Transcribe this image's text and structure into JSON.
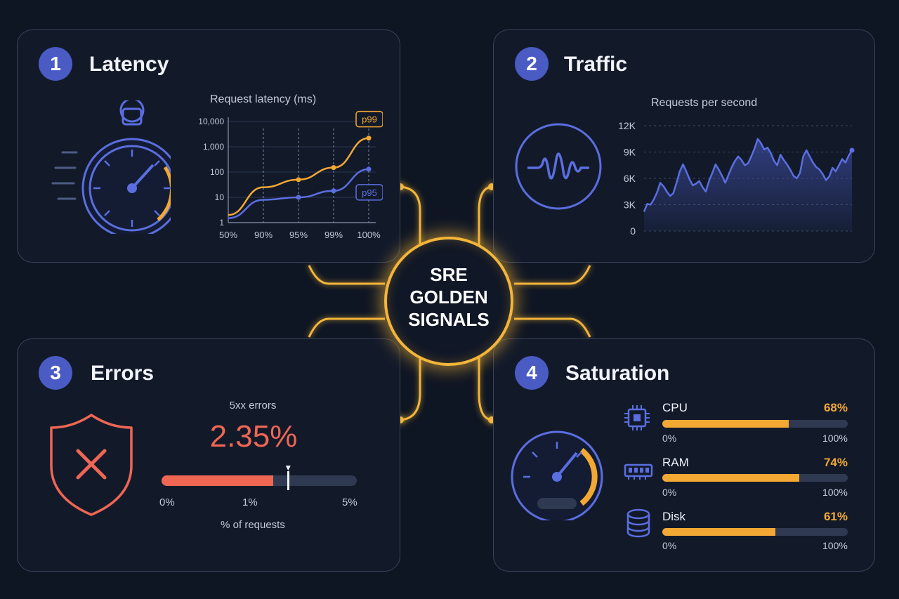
{
  "hub": {
    "lines": [
      "SRE",
      "GOLDEN",
      "SIGNALS"
    ]
  },
  "latency": {
    "number": "1",
    "title": "Latency",
    "chart_data": {
      "type": "line",
      "title": "Request latency (ms)",
      "x": [
        "50%",
        "90%",
        "95%",
        "99%",
        "100%"
      ],
      "y_scale": "log",
      "y_ticks": [
        "10,000",
        "1,000",
        "100",
        "10",
        "1"
      ],
      "ylim": [
        1,
        10000
      ],
      "series": [
        {
          "name": "p99",
          "color": "#f3a833",
          "values": [
            2,
            25,
            50,
            150,
            2200
          ]
        },
        {
          "name": "p95",
          "color": "#5b6ee0",
          "values": [
            1.5,
            8,
            10,
            18,
            130
          ]
        }
      ]
    }
  },
  "traffic": {
    "number": "2",
    "title": "Traffic",
    "chart_data": {
      "type": "area",
      "title": "Requests per second",
      "y_ticks": [
        "12K",
        "9K",
        "6K",
        "3K",
        "0"
      ],
      "ylim": [
        0,
        12000
      ],
      "values": [
        2200,
        3100,
        3000,
        3600,
        4400,
        5500,
        5100,
        4500,
        4000,
        4300,
        5500,
        6800,
        7600,
        6800,
        5900,
        5200,
        5400,
        5700,
        5000,
        4500,
        5700,
        6600,
        7600,
        7000,
        6300,
        5500,
        6400,
        7300,
        8000,
        8500,
        8100,
        7500,
        7700,
        8500,
        9400,
        10500,
        10000,
        9300,
        9500,
        8900,
        8000,
        7500,
        8700,
        8100,
        7600,
        7000,
        6300,
        6000,
        6600,
        8500,
        9200,
        8500,
        7800,
        7300,
        7000,
        6500,
        5800,
        6200,
        7200,
        6800,
        7500,
        8200,
        7800,
        8600,
        9200
      ]
    }
  },
  "errors": {
    "number": "3",
    "title": "Errors",
    "label": "5xx errors",
    "value": "2.35%",
    "value_fraction": 0.0235,
    "scale_max_fraction": 0.05,
    "ticks": [
      "0%",
      "1%",
      "5%"
    ],
    "caption": "% of requests"
  },
  "saturation": {
    "number": "4",
    "title": "Saturation",
    "resources": [
      {
        "label": "CPU",
        "value": "68%",
        "fraction": 0.68,
        "min": "0%",
        "max": "100%",
        "icon": "cpu-chip-icon"
      },
      {
        "label": "RAM",
        "value": "74%",
        "fraction": 0.74,
        "min": "0%",
        "max": "100%",
        "icon": "memory-module-icon"
      },
      {
        "label": "Disk",
        "value": "61%",
        "fraction": 0.61,
        "min": "0%",
        "max": "100%",
        "icon": "disk-database-icon"
      }
    ]
  },
  "colors": {
    "accent": "#f3a833",
    "blue": "#5b6ee0",
    "error": "#ef6653",
    "badge": "#4a5bc4"
  }
}
